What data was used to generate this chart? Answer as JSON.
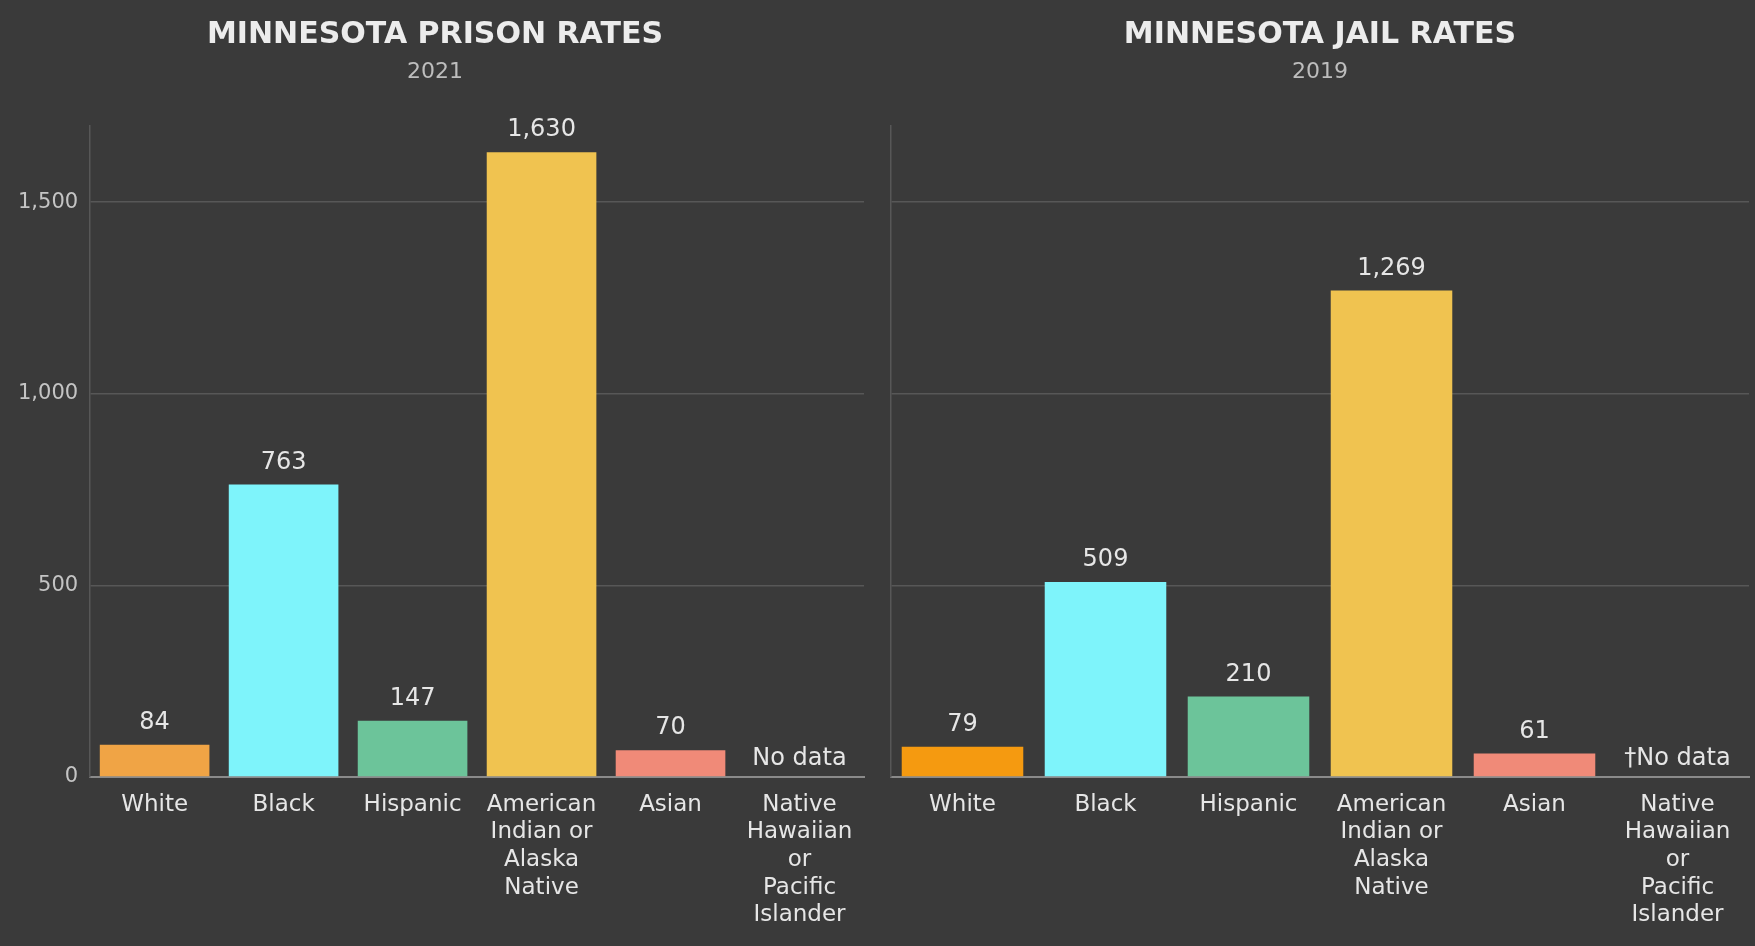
{
  "chart_data": [
    {
      "type": "bar",
      "title": "MINNESOTA PRISON RATES",
      "subtitle": "2021",
      "categories": [
        "White",
        "Black",
        "Hispanic",
        "American Indian or Alaska Native",
        "Asian",
        "Native Hawaiian or Pacific Islander"
      ],
      "values": [
        84,
        763,
        147,
        1630,
        70,
        null
      ],
      "value_labels": [
        "84",
        "763",
        "147",
        "1,630",
        "70",
        null
      ],
      "colors": [
        "#f0a445",
        "#7ef4fb",
        "#6cc49a",
        "#f0c350",
        "#f08a78",
        "#f08a78"
      ],
      "ylim": [
        0,
        1700
      ],
      "yticks": [
        0,
        500,
        {
          "value": 1000,
          "label": "1,000"
        },
        {
          "value": 1500,
          "label": "1,500"
        }
      ],
      "grid": "y",
      "annotations": [
        "No data"
      ]
    },
    {
      "type": "bar",
      "title": "MINNESOTA JAIL RATES",
      "subtitle": "2019",
      "categories": [
        "White",
        "Black",
        "Hispanic",
        "American Indian or Alaska Native",
        "Asian",
        "Native Hawaiian or Pacific Islander"
      ],
      "values": [
        79,
        509,
        210,
        1269,
        61,
        null
      ],
      "value_labels": [
        "79",
        "509",
        "210",
        "1,269",
        "61",
        null
      ],
      "colors": [
        "#f59a10",
        "#7ef4fb",
        "#6cc49a",
        "#f0c350",
        "#f08a78",
        "#f08a78"
      ],
      "ylim": [
        0,
        1700
      ],
      "yticks": [
        {
          "value": 0,
          "label": null
        },
        {
          "value": 500,
          "label": null
        },
        {
          "value": 1000,
          "label": null
        },
        {
          "value": 1500,
          "label": null
        }
      ],
      "grid": "y",
      "tick_labels": "x",
      "annotations": [
        "†No data"
      ]
    }
  ]
}
